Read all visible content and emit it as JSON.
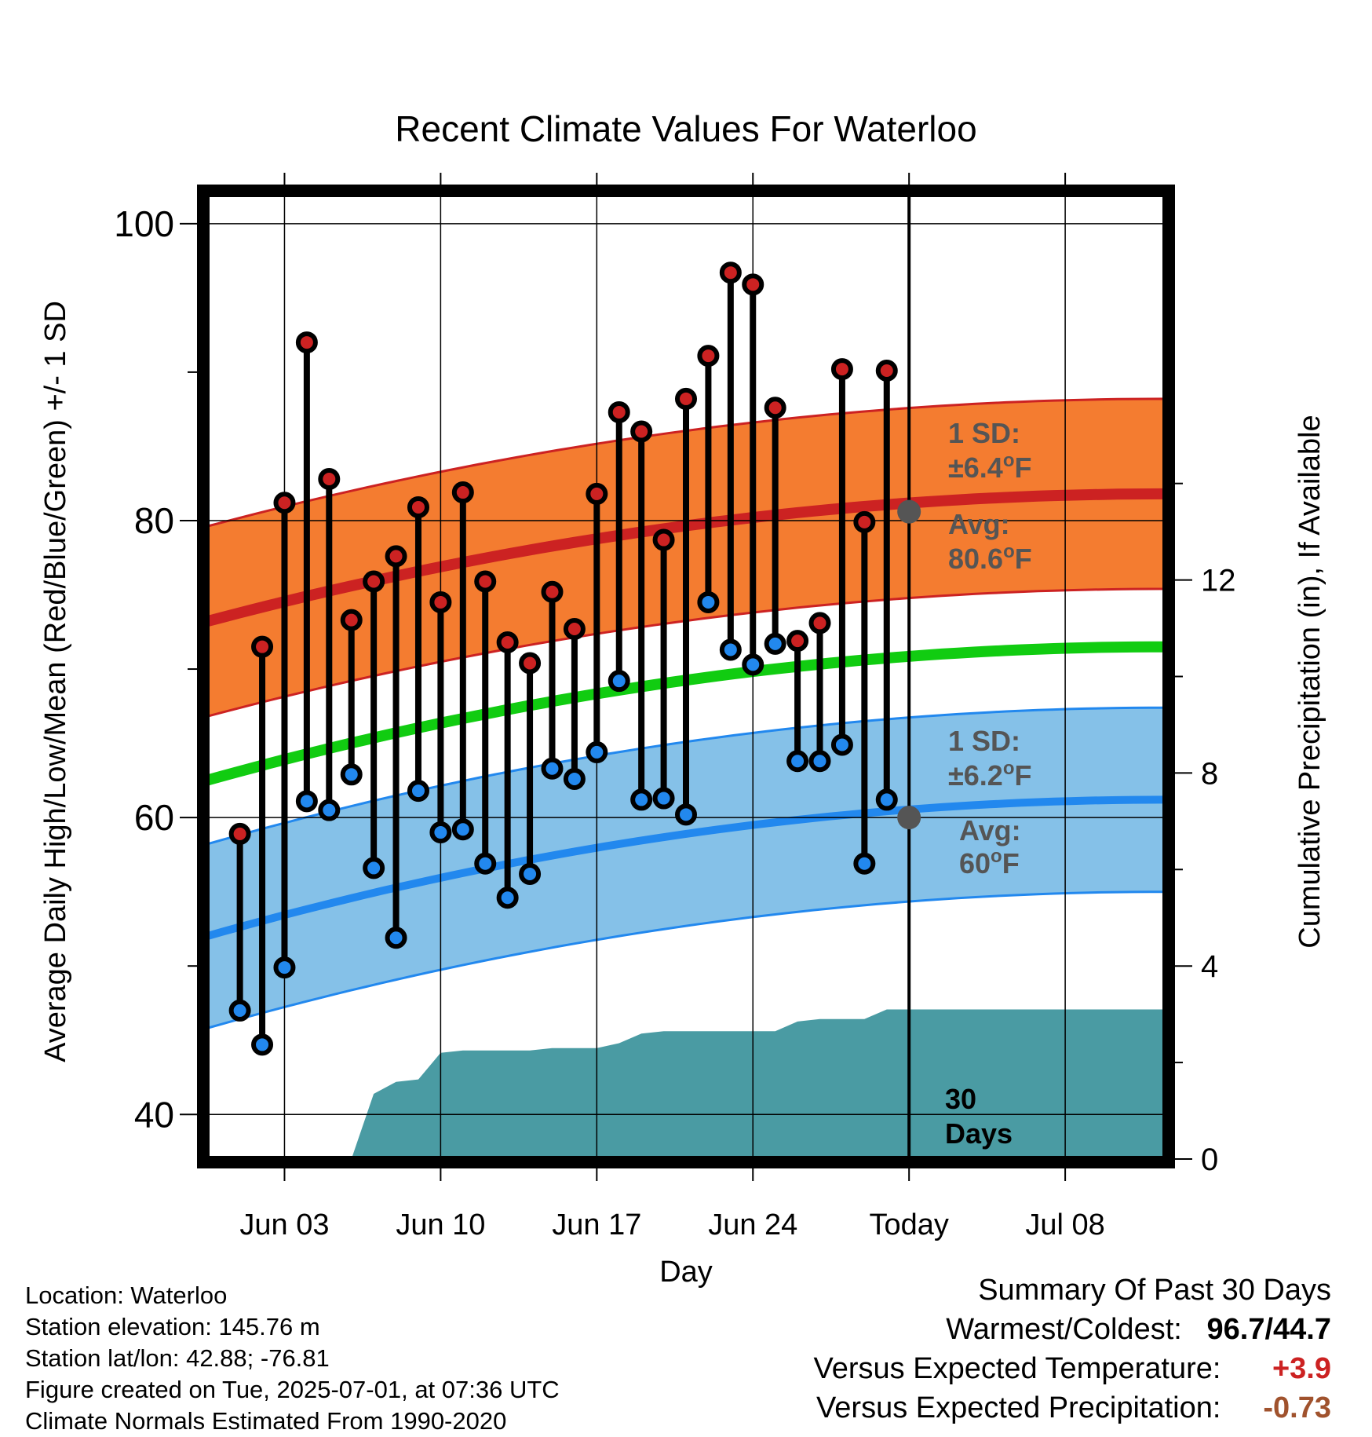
{
  "chart_data": {
    "type": "line",
    "title": "Recent Climate Values For Waterloo",
    "xlabel": "Day",
    "ylabel": "Average Daily High/Low/Mean (Red/Blue/Green) +/- 1 SD",
    "y2label": "Cumulative Precipitation (in), If Available",
    "ylim": [
      37,
      102
    ],
    "y2lim": [
      0,
      20
    ],
    "x_range_days": [
      -0.5,
      42.5
    ],
    "x_ticks": [
      {
        "day": 3,
        "label": "Jun 03"
      },
      {
        "day": 10,
        "label": "Jun 10"
      },
      {
        "day": 17,
        "label": "Jun 17"
      },
      {
        "day": 24,
        "label": "Jun 24"
      },
      {
        "day": 31,
        "label": "Today"
      },
      {
        "day": 38,
        "label": "Jul 08"
      }
    ],
    "y_ticks": [
      40,
      60,
      80,
      100
    ],
    "y2_ticks": [
      0,
      4,
      8,
      12
    ],
    "grid": true,
    "normals": {
      "high_avg": {
        "start": 73.2,
        "end": 81.8,
        "color": "#cc2222"
      },
      "high_sd": 6.4,
      "high_fill": "#f47c30",
      "mean_avg": {
        "start": 62.5,
        "end": 71.5,
        "color": "#11cc11"
      },
      "low_avg": {
        "start": 52.0,
        "end": 61.2,
        "color": "#2288ee"
      },
      "low_sd": 6.2,
      "low_fill": "#85c1e8"
    },
    "series": [
      {
        "name": "Daily High",
        "color": "#cc2222",
        "days": [
          1,
          2,
          3,
          4,
          5,
          6,
          7,
          8,
          9,
          10,
          11,
          12,
          13,
          14,
          15,
          16,
          17,
          18,
          19,
          20,
          21,
          22,
          23,
          24,
          25,
          26,
          27,
          28,
          29,
          30
        ],
        "values": [
          58.9,
          71.5,
          81.2,
          92.0,
          82.8,
          73.3,
          75.9,
          77.6,
          80.9,
          74.5,
          81.9,
          75.9,
          71.8,
          70.4,
          75.2,
          72.7,
          81.8,
          87.3,
          86.0,
          78.7,
          88.2,
          91.1,
          96.7,
          95.9,
          87.6,
          71.9,
          73.1,
          90.2,
          79.9,
          90.1
        ]
      },
      {
        "name": "Daily Low",
        "color": "#2288ee",
        "days": [
          1,
          2,
          3,
          4,
          5,
          6,
          7,
          8,
          9,
          10,
          11,
          12,
          13,
          14,
          15,
          16,
          17,
          18,
          19,
          20,
          21,
          22,
          23,
          24,
          25,
          26,
          27,
          28,
          29,
          30
        ],
        "values": [
          47.0,
          44.7,
          49.9,
          61.1,
          60.5,
          62.9,
          56.6,
          51.9,
          61.8,
          59.0,
          59.2,
          56.9,
          54.6,
          56.2,
          63.3,
          62.6,
          64.4,
          69.2,
          61.2,
          61.3,
          60.2,
          74.5,
          71.3,
          70.3,
          71.7,
          63.8,
          63.8,
          64.9,
          56.9,
          61.2
        ]
      },
      {
        "name": "Cumulative Precipitation",
        "color": "#4a9ba3",
        "x": [
          -0.5,
          1,
          2,
          3,
          4,
          5,
          6,
          7,
          8,
          9,
          10,
          11,
          12,
          13,
          14,
          15,
          16,
          17,
          18,
          19,
          20,
          21,
          22,
          23,
          24,
          25,
          26,
          27,
          28,
          29,
          30,
          31,
          42.5
        ],
        "values": [
          0,
          0,
          0,
          0,
          0,
          0,
          0,
          1.35,
          1.6,
          1.65,
          2.2,
          2.25,
          2.25,
          2.25,
          2.25,
          2.3,
          2.3,
          2.3,
          2.4,
          2.6,
          2.65,
          2.65,
          2.65,
          2.65,
          2.65,
          2.65,
          2.85,
          2.9,
          2.9,
          2.9,
          3.1,
          3.1,
          3.1
        ]
      }
    ],
    "today_day": 31,
    "annotations": {
      "high_sd_label": [
        "1 SD:",
        "±6.4°F"
      ],
      "high_avg_label": [
        "Avg:",
        "80.6°F"
      ],
      "high_avg_value": 80.6,
      "low_sd_label": [
        "1 SD:",
        "±6.2°F"
      ],
      "low_avg_label": [
        "Avg:",
        "60°F"
      ],
      "low_avg_value": 60,
      "window_label": [
        "30",
        "Days"
      ]
    }
  },
  "footer": {
    "location": "Location: Waterloo",
    "elevation": "Station elevation: 145.76 m",
    "latlon": "Station lat/lon: 42.88; -76.81",
    "created": "Figure created on Tue, 2025-07-01, at 07:36 UTC",
    "normals": "Climate Normals Estimated From 1990-2020"
  },
  "summary": {
    "heading": "Summary Of Past 30 Days",
    "warm_cold_label": "Warmest/Coldest:",
    "warm_cold_value": "96.7/44.7",
    "temp_label": "Versus Expected Temperature:",
    "temp_value": "+3.9",
    "temp_color": "#cc2222",
    "precip_label": "Versus Expected Precipitation:",
    "precip_value": "-0.73",
    "precip_color": "#a0522d"
  }
}
